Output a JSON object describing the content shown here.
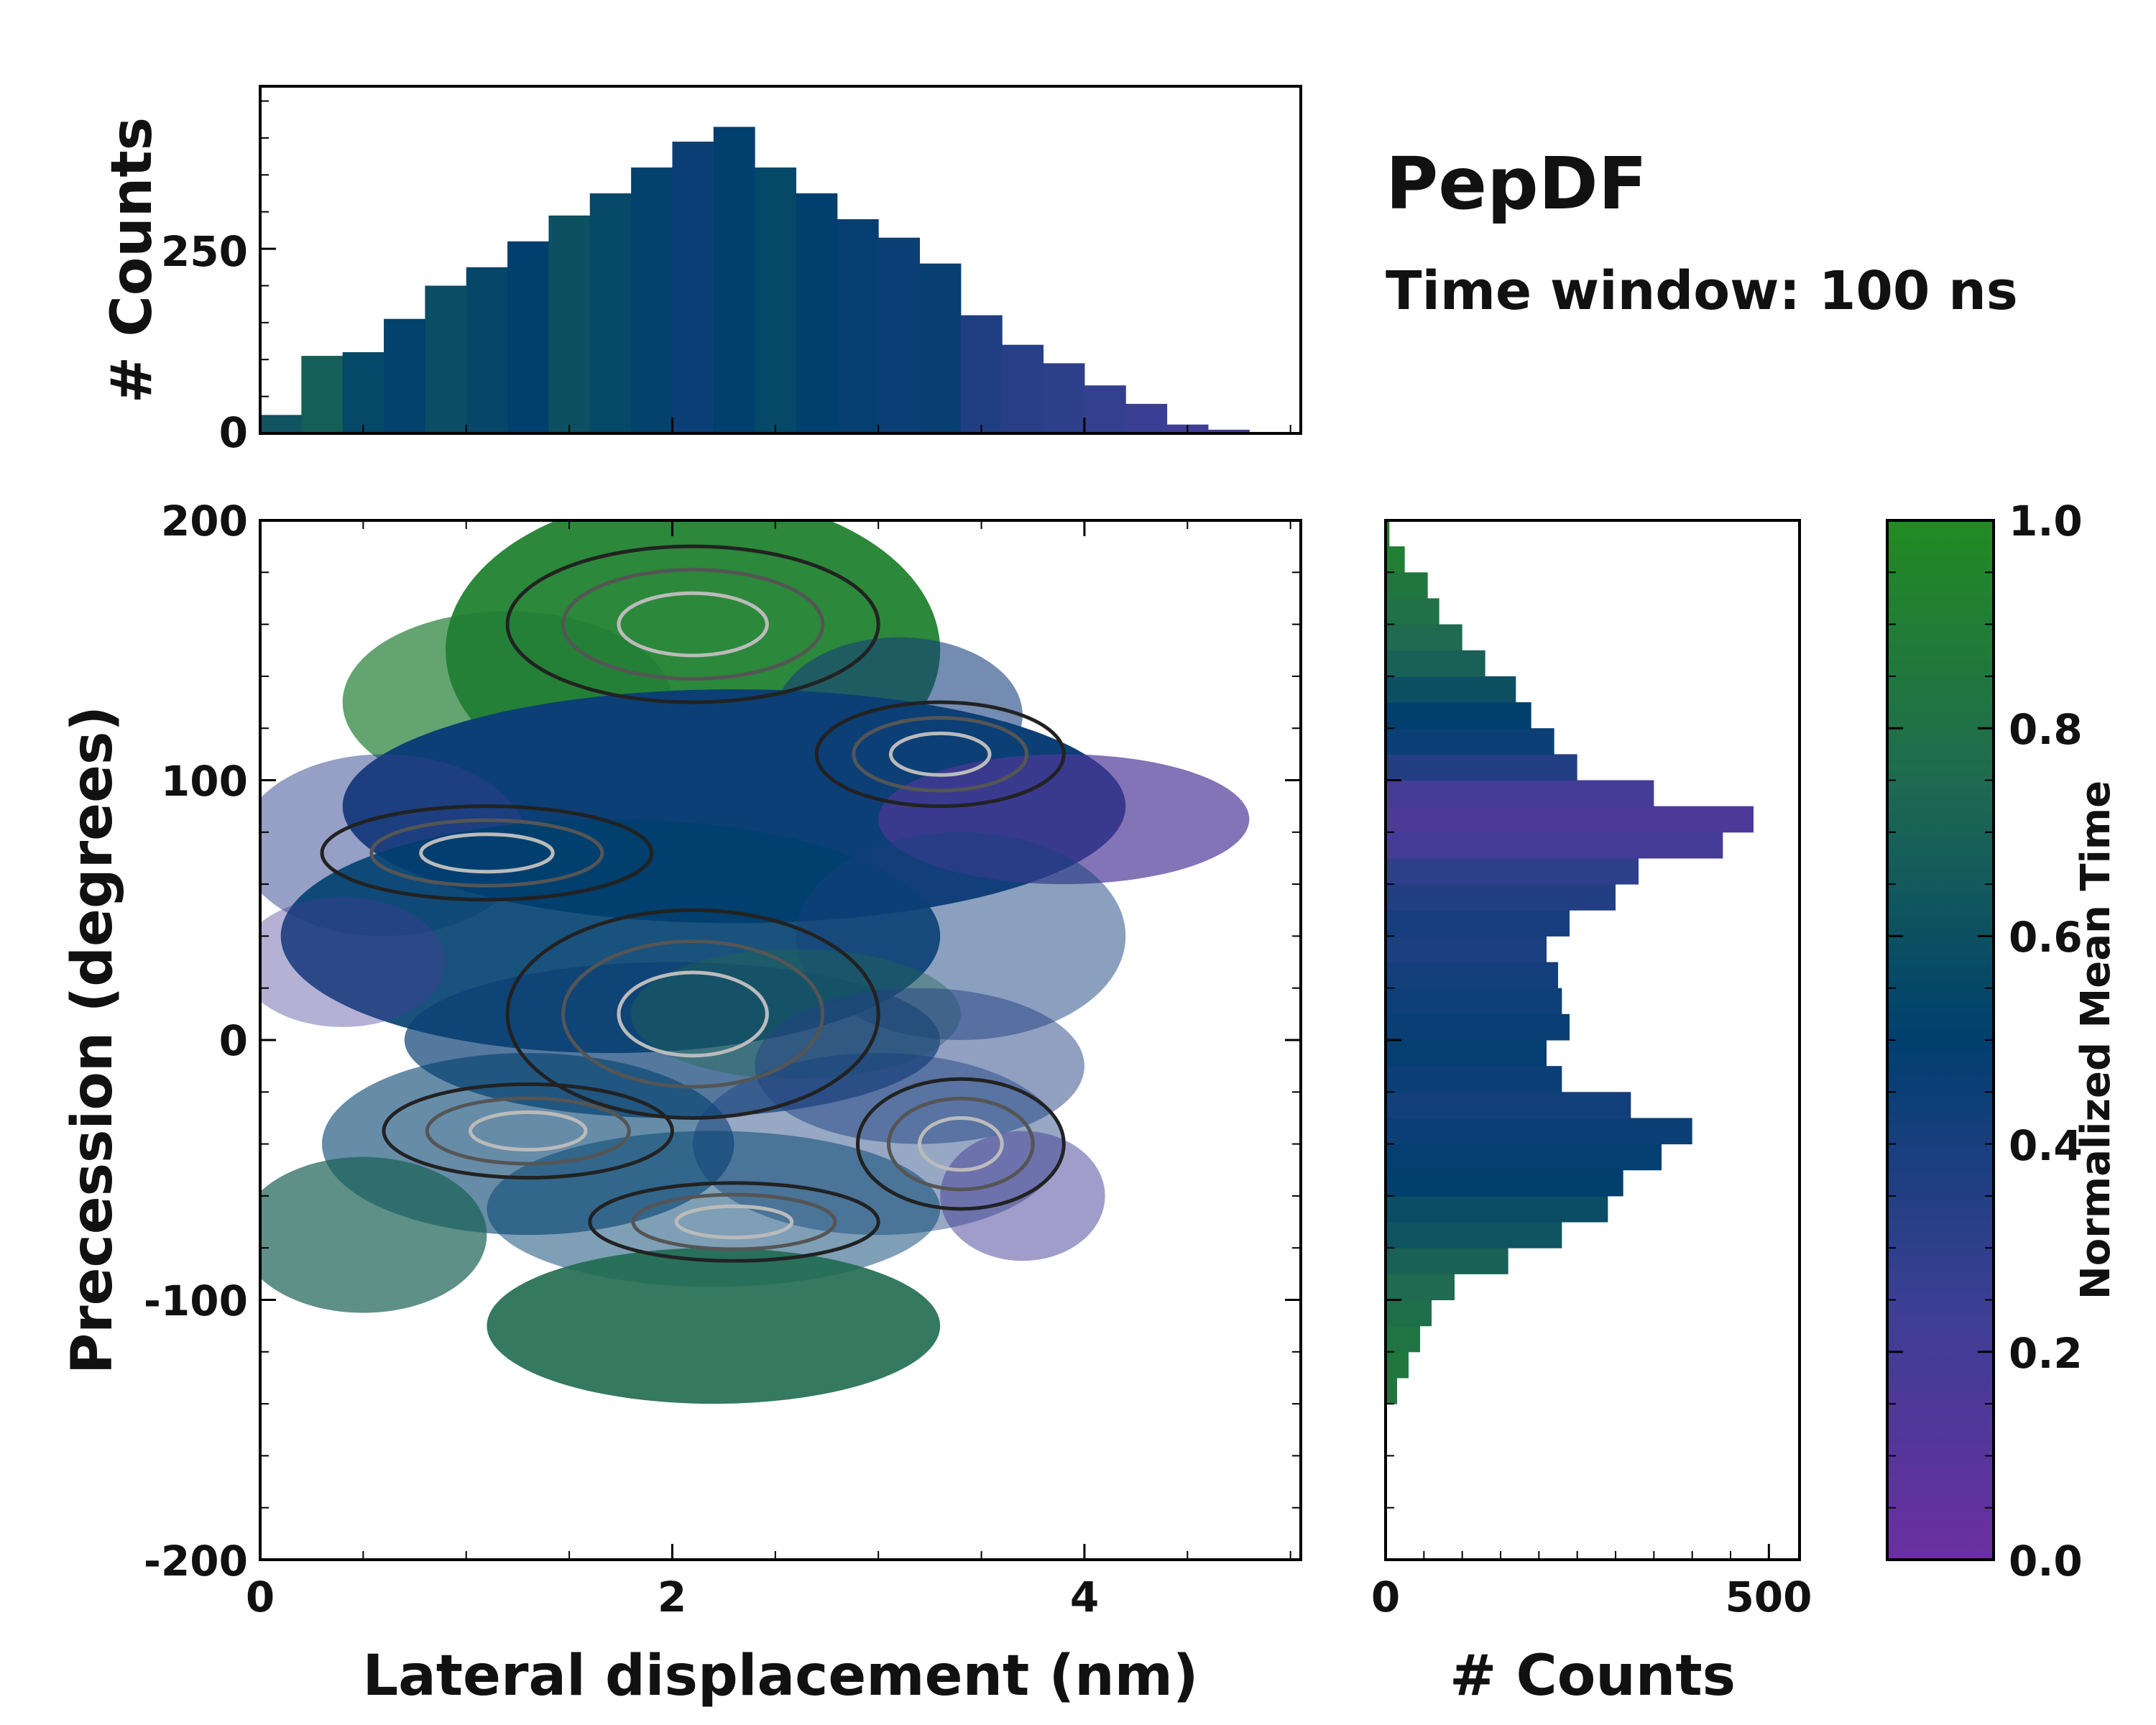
{
  "chart_data": {
    "type": "heatmap",
    "title": "PepDF",
    "subtitle": "Time window: 100 ns",
    "xlabel": "Lateral displacement (nm)",
    "ylabel": "Precession (degrees)",
    "xlim": [
      0,
      5.05
    ],
    "ylim": [
      -200,
      200
    ],
    "xticks": [
      0,
      2,
      4
    ],
    "yticks": [
      -200,
      -100,
      0,
      100,
      200
    ],
    "colorbar": {
      "label": "Normalized Mean Time",
      "range": [
        0,
        1
      ],
      "ticks": [
        "0.0",
        "0.2",
        "0.4",
        "0.6",
        "0.8",
        "1.0"
      ],
      "colors": [
        "#6a2fa0",
        "#3a3f93",
        "#003f6e",
        "#1f6a50",
        "#228b22"
      ]
    },
    "top_histogram": {
      "ylabel": "# Counts",
      "ylim": [
        0,
        470
      ],
      "yticks": [
        "0",
        "250"
      ],
      "x_centers": [
        0.1,
        0.3,
        0.5,
        0.7,
        0.9,
        1.1,
        1.3,
        1.5,
        1.7,
        1.9,
        2.1,
        2.3,
        2.5,
        2.7,
        2.9,
        3.1,
        3.3,
        3.5,
        3.7,
        3.9,
        4.1,
        4.3,
        4.5,
        4.7,
        4.9
      ],
      "counts": [
        25,
        105,
        110,
        155,
        200,
        225,
        260,
        295,
        325,
        360,
        395,
        415,
        360,
        325,
        290,
        265,
        230,
        160,
        120,
        95,
        65,
        40,
        12,
        5,
        2
      ],
      "color_values": [
        0.62,
        0.68,
        0.55,
        0.52,
        0.58,
        0.54,
        0.5,
        0.6,
        0.55,
        0.52,
        0.45,
        0.5,
        0.55,
        0.5,
        0.48,
        0.45,
        0.47,
        0.36,
        0.33,
        0.3,
        0.28,
        0.25,
        0.22,
        0.2,
        0.2
      ]
    },
    "right_histogram": {
      "xlabel": "# Counts",
      "xlim": [
        0,
        540
      ],
      "xticks": [
        "0",
        "500"
      ],
      "y_centers": [
        -135,
        -125,
        -115,
        -105,
        -95,
        -85,
        -75,
        -65,
        -55,
        -45,
        -35,
        -25,
        -15,
        -5,
        5,
        15,
        25,
        35,
        45,
        55,
        65,
        75,
        85,
        95,
        105,
        115,
        125,
        135,
        145,
        155,
        165,
        175,
        185,
        195
      ],
      "counts": [
        15,
        30,
        45,
        60,
        90,
        160,
        230,
        290,
        310,
        360,
        400,
        320,
        230,
        210,
        240,
        230,
        225,
        210,
        240,
        300,
        330,
        440,
        480,
        350,
        250,
        220,
        190,
        170,
        130,
        100,
        70,
        55,
        25,
        5
      ],
      "color_values": [
        0.85,
        0.85,
        0.82,
        0.78,
        0.75,
        0.7,
        0.62,
        0.58,
        0.5,
        0.48,
        0.45,
        0.42,
        0.45,
        0.48,
        0.46,
        0.44,
        0.42,
        0.38,
        0.4,
        0.35,
        0.3,
        0.2,
        0.15,
        0.2,
        0.35,
        0.45,
        0.5,
        0.6,
        0.7,
        0.75,
        0.8,
        0.85,
        0.9,
        0.92
      ]
    }
  }
}
